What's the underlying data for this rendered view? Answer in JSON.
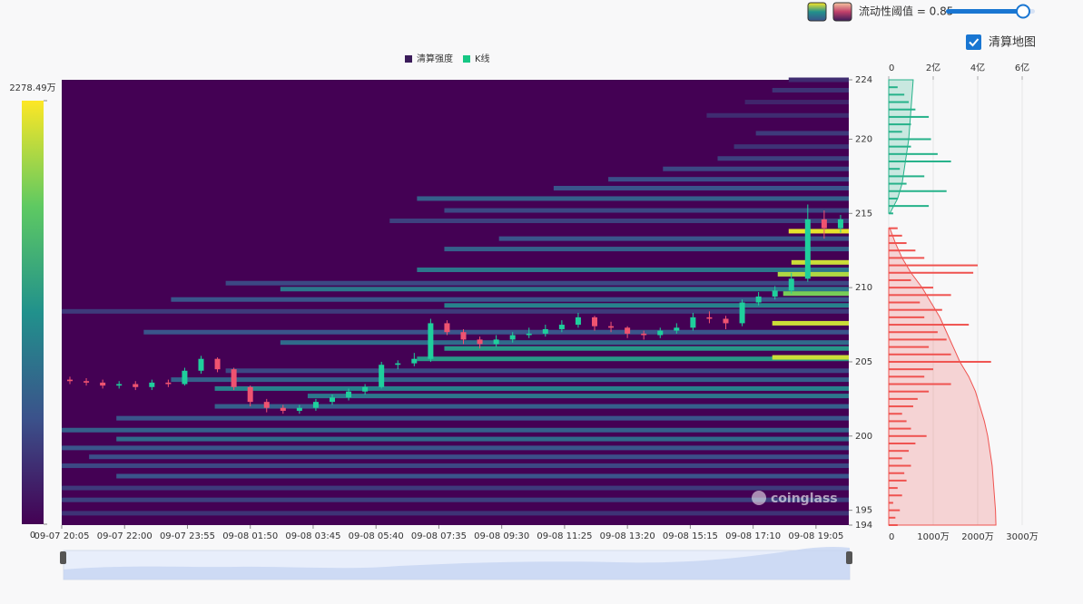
{
  "controls": {
    "threshold_label": "流动性阈值 = 0.85",
    "checkbox_label": "清算地图",
    "checked": true
  },
  "chart_data": [
    {
      "type": "heatmap",
      "legend": [
        {
          "name": "清算强度",
          "color": "#3b1c5a"
        },
        {
          "name": "K线",
          "color": "#16c784"
        }
      ],
      "watermark": "coinglass",
      "xlim": [
        0,
        1440
      ],
      "xticks": [
        {
          "value": 0,
          "label": "09-07 20:05"
        },
        {
          "value": 115,
          "label": "09-07 22:00"
        },
        {
          "value": 230,
          "label": "09-07 23:55"
        },
        {
          "value": 345,
          "label": "09-08 01:50"
        },
        {
          "value": 460,
          "label": "09-08 03:45"
        },
        {
          "value": 575,
          "label": "09-08 05:40"
        },
        {
          "value": 690,
          "label": "09-08 07:35"
        },
        {
          "value": 805,
          "label": "09-08 09:30"
        },
        {
          "value": 920,
          "label": "09-08 11:25"
        },
        {
          "value": 1035,
          "label": "09-08 13:20"
        },
        {
          "value": 1150,
          "label": "09-08 15:15"
        },
        {
          "value": 1265,
          "label": "09-08 17:10"
        },
        {
          "value": 1380,
          "label": "09-08 19:05"
        }
      ],
      "ylim": [
        194,
        224
      ],
      "yticks": [
        194,
        195,
        200,
        205,
        210,
        215,
        220,
        224
      ],
      "clim": [
        0,
        22784900
      ],
      "cticks": [
        {
          "value": 22784900,
          "label": "2278.49万"
        },
        0
      ],
      "bands": {
        "y": [
          224,
          223.3,
          222.5,
          221.6,
          220.4,
          219.5,
          218.7,
          218,
          217.3,
          216.7,
          216,
          215.2,
          214.5,
          213.8,
          213.3,
          212.6,
          211.7,
          211.2,
          210.9,
          210.3,
          209.9,
          209.6,
          209.2,
          208.8,
          208.4,
          207.6,
          207,
          206.3,
          205.9,
          205.2,
          205.3,
          204.4,
          203.8,
          203.2,
          202.7,
          202,
          201.2,
          200.4,
          199.8,
          199.2,
          198.6,
          198,
          197.3,
          196.5,
          195.7,
          194.8
        ],
        "x_start": [
          1330,
          1300,
          1250,
          1180,
          1270,
          1230,
          1200,
          1100,
          1000,
          900,
          650,
          700,
          600,
          1330,
          800,
          700,
          1335,
          650,
          1310,
          300,
          400,
          1320,
          200,
          700,
          0,
          1300,
          150,
          400,
          700,
          650,
          1300,
          300,
          200,
          280,
          450,
          280,
          100,
          0,
          100,
          0,
          50,
          0,
          100,
          0,
          0,
          0
        ],
        "values": [
          3000000,
          3500000,
          2500000,
          3000000,
          4000000,
          3500000,
          4500000,
          5000000,
          5500000,
          6000000,
          7000000,
          5000000,
          4500000,
          22000000,
          6000000,
          7000000,
          21000000,
          9000000,
          20000000,
          5000000,
          9000000,
          18000000,
          6000000,
          10000000,
          4000000,
          21000000,
          6000000,
          8000000,
          12000000,
          12000000,
          21000000,
          5000000,
          7000000,
          10000000,
          9000000,
          7000000,
          6000000,
          7000000,
          8000000,
          6000000,
          5500000,
          5000000,
          6000000,
          4000000,
          4500000,
          3500000
        ]
      },
      "candles": {
        "up_color": "#1fcf9c",
        "down_color": "#ef5370",
        "x": [
          0,
          30,
          60,
          90,
          120,
          150,
          180,
          210,
          240,
          270,
          300,
          330,
          360,
          390,
          420,
          450,
          480,
          510,
          540,
          570,
          600,
          630,
          660,
          690,
          720,
          750,
          780,
          810,
          840,
          870,
          900,
          930,
          960,
          990,
          1020,
          1050,
          1080,
          1110,
          1140,
          1170,
          1200,
          1230,
          1260,
          1290,
          1320,
          1350,
          1380,
          1410
        ],
        "open": [
          203.8,
          203.7,
          203.6,
          203.4,
          203.5,
          203.3,
          203.6,
          203.5,
          204.4,
          205.2,
          204.5,
          203.3,
          202.3,
          201.9,
          201.7,
          201.9,
          202.3,
          202.6,
          203.0,
          203.3,
          204.8,
          204.9,
          205.2,
          207.6,
          207.0,
          206.5,
          206.2,
          206.5,
          206.8,
          206.9,
          207.2,
          207.5,
          208.0,
          207.4,
          207.3,
          206.9,
          206.8,
          207.1,
          207.3,
          208.0,
          207.9,
          207.6,
          209.0,
          209.4,
          209.8,
          210.6,
          214.6,
          214.0
        ],
        "high": [
          204.0,
          203.9,
          203.8,
          203.7,
          203.7,
          203.8,
          203.8,
          204.6,
          205.4,
          205.3,
          204.6,
          203.4,
          202.5,
          202.1,
          202.1,
          202.5,
          202.8,
          203.2,
          203.5,
          205.0,
          205.1,
          205.6,
          207.9,
          207.8,
          207.2,
          206.7,
          206.8,
          207.0,
          207.3,
          207.5,
          207.8,
          208.3,
          208.1,
          207.7,
          207.4,
          207.1,
          207.3,
          207.6,
          208.3,
          208.4,
          208.1,
          209.2,
          209.7,
          210.1,
          211.0,
          215.6,
          215.2,
          214.9
        ],
        "low": [
          203.5,
          203.4,
          203.2,
          203.2,
          203.1,
          203.1,
          203.3,
          203.4,
          204.2,
          204.3,
          203.1,
          202.0,
          201.6,
          201.5,
          201.5,
          201.7,
          202.1,
          202.4,
          202.8,
          203.2,
          204.5,
          204.7,
          205.0,
          206.8,
          206.2,
          205.9,
          206.0,
          206.3,
          206.6,
          206.7,
          207.0,
          207.3,
          207.1,
          207.0,
          206.6,
          206.5,
          206.6,
          206.9,
          207.1,
          207.6,
          207.2,
          207.4,
          208.8,
          209.2,
          209.6,
          210.4,
          213.3,
          213.7
        ],
        "close": [
          203.7,
          203.6,
          203.4,
          203.5,
          203.3,
          203.6,
          203.5,
          204.4,
          205.2,
          204.5,
          203.3,
          202.3,
          201.9,
          201.7,
          201.9,
          202.3,
          202.6,
          203.0,
          203.3,
          204.8,
          204.9,
          205.2,
          207.6,
          207.0,
          206.5,
          206.2,
          206.5,
          206.8,
          206.9,
          207.2,
          207.5,
          208.0,
          207.4,
          207.3,
          206.9,
          206.8,
          207.1,
          207.3,
          208.0,
          207.9,
          207.6,
          209.0,
          209.4,
          209.8,
          210.6,
          214.6,
          214.0,
          214.6
        ]
      }
    },
    {
      "type": "bar",
      "orientation": "horizontal",
      "ylim": [
        194,
        224
      ],
      "xlim": [
        0,
        40000000
      ],
      "xticks": [
        0,
        {
          "value": 10000000,
          "label": "1000万"
        },
        {
          "value": 20000000,
          "label": "2000万"
        },
        {
          "value": 30000000,
          "label": "3000万"
        }
      ],
      "x2lim": [
        0,
        800000000
      ],
      "x2ticks": [
        0,
        {
          "value": 200000000,
          "label": "2亿"
        },
        {
          "value": 400000000,
          "label": "4亿"
        },
        {
          "value": 600000000,
          "label": "6亿"
        }
      ],
      "series": [
        {
          "kind": "bar",
          "color": "#26b28a",
          "y": [
            215,
            215.5,
            216,
            216.5,
            217,
            217.5,
            218,
            218.5,
            219,
            219.5,
            220,
            220.5,
            221,
            221.5,
            222,
            222.5,
            223,
            223.5
          ],
          "values": [
            1000000,
            9000000,
            2000000,
            13000000,
            4000000,
            8000000,
            2500000,
            14000000,
            11000000,
            5000000,
            9500000,
            3000000,
            5000000,
            9000000,
            6000000,
            4500000,
            3500000,
            2000000
          ]
        },
        {
          "kind": "bar",
          "color": "#ef5350",
          "y": [
            194,
            194.5,
            195,
            195.5,
            196,
            196.5,
            197,
            197.5,
            198,
            198.5,
            199,
            199.5,
            200,
            200.5,
            201,
            201.5,
            202,
            202.5,
            203,
            203.5,
            204,
            204.5,
            205,
            205.5,
            206,
            206.5,
            207,
            207.5,
            208,
            208.5,
            209,
            209.5,
            210,
            210.5,
            211,
            211.5,
            212,
            212.5,
            213,
            213.5,
            214
          ],
          "values": [
            2000000,
            1500000,
            2500000,
            1000000,
            3000000,
            2000000,
            4000000,
            3500000,
            5000000,
            3000000,
            4500000,
            6000000,
            8500000,
            5000000,
            4000000,
            3000000,
            5500000,
            6500000,
            9000000,
            14000000,
            8000000,
            10000000,
            23000000,
            14000000,
            9000000,
            13000000,
            11000000,
            18000000,
            8000000,
            12000000,
            7000000,
            14000000,
            10000000,
            5000000,
            19000000,
            20000000,
            8000000,
            6000000,
            4000000,
            3000000,
            2000000
          ]
        },
        {
          "kind": "area",
          "axis": "x2",
          "color": "#26b28a",
          "y": [
            215,
            216,
            217,
            218,
            219,
            220,
            221,
            222,
            223,
            224
          ],
          "values": [
            5000000,
            40000000,
            60000000,
            70000000,
            80000000,
            90000000,
            95000000,
            100000000,
            105000000,
            110000000
          ]
        },
        {
          "kind": "area",
          "axis": "x2",
          "color": "#ef5350",
          "y": [
            214,
            213,
            212,
            211,
            210,
            209,
            208,
            207,
            206,
            205,
            204,
            203,
            202,
            201,
            200,
            199,
            198,
            197,
            196,
            195,
            194
          ],
          "values": [
            5000000,
            30000000,
            60000000,
            100000000,
            150000000,
            190000000,
            230000000,
            260000000,
            290000000,
            320000000,
            360000000,
            390000000,
            410000000,
            430000000,
            445000000,
            455000000,
            465000000,
            470000000,
            475000000,
            480000000,
            482000000
          ]
        }
      ]
    }
  ]
}
